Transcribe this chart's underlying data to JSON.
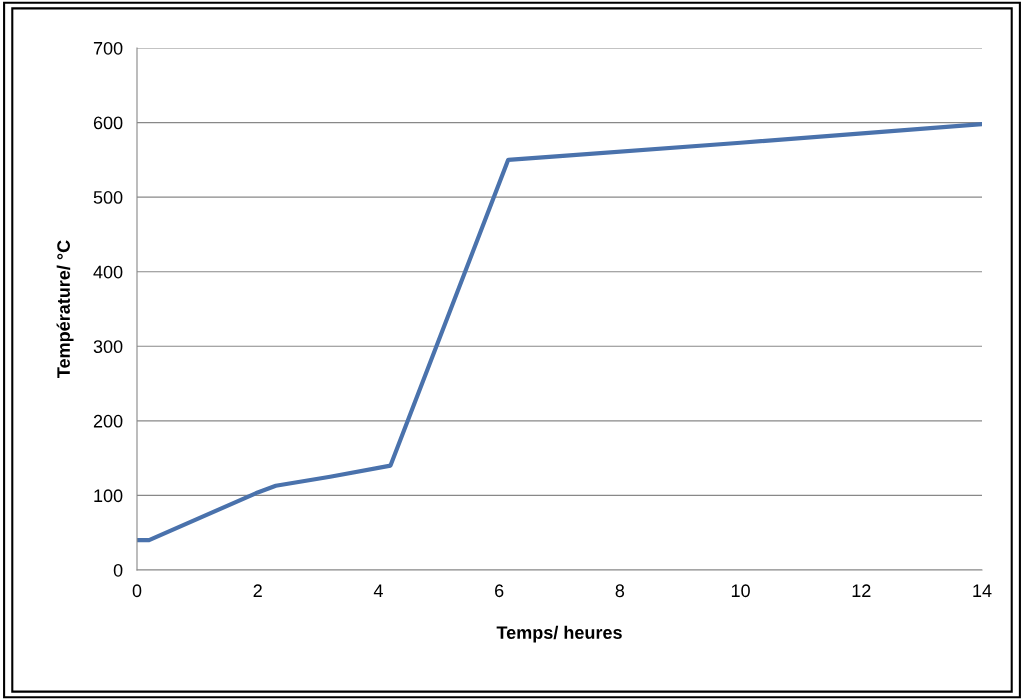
{
  "chart_data": {
    "type": "line",
    "xlabel": "Temps/ heures",
    "ylabel": "Température/ °C",
    "x": [
      0,
      0.2,
      2,
      2.3,
      3.2,
      4.2,
      6.15,
      7,
      10,
      14
    ],
    "series": [
      {
        "color": "#4a72ac",
        "values": [
          40,
          40,
          104,
          113,
          125,
          140,
          550,
          555,
          573,
          598
        ]
      }
    ],
    "xlim": [
      0,
      14
    ],
    "xticks": [
      0,
      2,
      4,
      6,
      8,
      10,
      12,
      14
    ],
    "ylim": [
      0,
      700
    ],
    "yticks": [
      0,
      100,
      200,
      300,
      400,
      500,
      600,
      700
    ],
    "grid": "y",
    "legend": false,
    "marker": "none",
    "line_style": "solid"
  }
}
